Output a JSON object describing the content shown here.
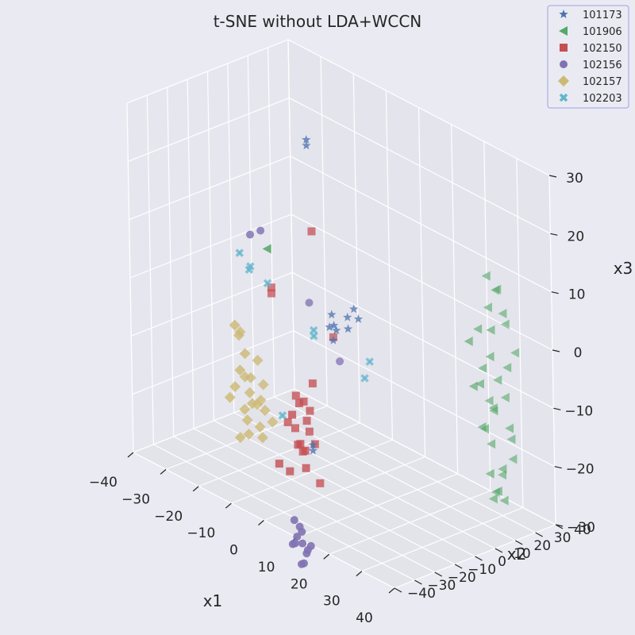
{
  "chart_data": {
    "type": "scatter",
    "title": "t-SNE without LDA+WCCN",
    "xlabel": "x1",
    "ylabel": "x2",
    "zlabel": "x3",
    "x_ticks": [
      "−40",
      "−30",
      "−20",
      "−10",
      "0",
      "10",
      "20",
      "30",
      "40"
    ],
    "y_ticks": [
      "−40",
      "−30",
      "−20",
      "−10",
      "0",
      "10",
      "20",
      "30",
      "40"
    ],
    "z_ticks": [
      "−30",
      "−20",
      "−10",
      "0",
      "10",
      "20",
      "30"
    ],
    "xlim": [
      -40,
      40
    ],
    "ylim": [
      -40,
      40
    ],
    "zlim": [
      -30,
      30
    ],
    "grid": true,
    "legend_position": "top-right",
    "series": [
      {
        "name": "101173",
        "marker": "star",
        "color": "#4c72b0",
        "points": [
          [
            -8,
            -3,
            28
          ],
          [
            -8,
            -3,
            27
          ],
          [
            2,
            3,
            1
          ],
          [
            -3,
            0,
            -1
          ],
          [
            -1,
            -1,
            -3
          ],
          [
            4,
            2,
            0
          ],
          [
            0,
            3,
            -1
          ],
          [
            -5,
            2,
            -4
          ],
          [
            -2,
            -1,
            -5
          ],
          [
            -3,
            1,
            -3
          ],
          [
            2,
            0,
            -2
          ],
          [
            -7,
            -4,
            -24
          ],
          [
            -7,
            -4,
            -25
          ]
        ]
      },
      {
        "name": "101906",
        "marker": "triangle-left",
        "color": "#55a868",
        "points": [
          [
            -10,
            -20,
            11
          ],
          [
            30,
            24,
            12
          ],
          [
            32,
            26,
            10
          ],
          [
            34,
            22,
            11
          ],
          [
            31,
            23,
            7
          ],
          [
            33,
            27,
            6
          ],
          [
            29,
            21,
            3
          ],
          [
            35,
            25,
            5
          ],
          [
            28,
            18,
            1
          ],
          [
            32,
            22,
            -1
          ],
          [
            36,
            28,
            0
          ],
          [
            30,
            20,
            -6
          ],
          [
            33,
            24,
            -5
          ],
          [
            34,
            20,
            -9
          ],
          [
            29,
            26,
            -10
          ],
          [
            37,
            23,
            -12
          ],
          [
            31,
            19,
            -13
          ],
          [
            35,
            27,
            -15
          ],
          [
            30,
            25,
            -17
          ],
          [
            34,
            24,
            -20
          ],
          [
            32,
            21,
            -21
          ],
          [
            36,
            26,
            -18
          ],
          [
            33,
            22,
            -24
          ],
          [
            31,
            24,
            -26
          ],
          [
            35,
            20,
            -23
          ],
          [
            29,
            23,
            -4
          ],
          [
            34,
            26,
            -8
          ],
          [
            32,
            27,
            -22
          ],
          [
            30,
            22,
            -14
          ],
          [
            36,
            24,
            -2
          ],
          [
            33,
            21,
            4
          ],
          [
            31,
            25,
            -11
          ],
          [
            35,
            23,
            -25
          ],
          [
            28,
            20,
            -7
          ]
        ]
      },
      {
        "name": "102150",
        "marker": "square",
        "color": "#c44e52",
        "points": [
          [
            -10,
            2,
            11
          ],
          [
            -24,
            4,
            -3
          ],
          [
            -24,
            4,
            -4
          ],
          [
            -7,
            7,
            -7
          ],
          [
            -8,
            -2,
            -14
          ],
          [
            -9,
            -5,
            -17
          ],
          [
            -11,
            -4,
            -18
          ],
          [
            -12,
            -6,
            -20
          ],
          [
            -10,
            -2,
            -21
          ],
          [
            -8,
            -4,
            -22
          ],
          [
            -13,
            -3,
            -23
          ],
          [
            -9,
            -7,
            -24
          ],
          [
            -11,
            -5,
            -25
          ],
          [
            -10,
            -3,
            -26
          ],
          [
            -12,
            -1,
            -27
          ],
          [
            -8,
            -6,
            -28
          ],
          [
            -14,
            -5,
            -22
          ],
          [
            -7,
            -3,
            -24
          ],
          [
            -15,
            -8,
            -29
          ],
          [
            -13,
            -6,
            -30
          ],
          [
            -5,
            -4,
            -30
          ],
          [
            -9,
            -2,
            -19
          ],
          [
            -12,
            -4,
            -17
          ]
        ]
      },
      {
        "name": "102156",
        "marker": "circle",
        "color": "#8172b2",
        "points": [
          [
            -19,
            -14,
            10
          ],
          [
            -17,
            -12,
            11
          ],
          [
            -8,
            -3,
            0
          ],
          [
            -2,
            2,
            -9
          ],
          [
            0,
            -25,
            -32
          ],
          [
            1,
            -24,
            -33
          ],
          [
            2,
            -27,
            -34
          ],
          [
            3,
            -26,
            -35
          ],
          [
            1,
            -23,
            -34
          ],
          [
            4,
            -25,
            -36
          ],
          [
            2,
            -28,
            -35
          ],
          [
            3,
            -24,
            -37
          ],
          [
            0,
            -26,
            -36
          ],
          [
            5,
            -25,
            -35
          ],
          [
            4,
            -27,
            -38
          ],
          [
            2,
            -25,
            -39
          ]
        ]
      },
      {
        "name": "102157",
        "marker": "diamond",
        "color": "#ccb974",
        "points": [
          [
            -28,
            -8,
            -9
          ],
          [
            -27,
            -7,
            -10
          ],
          [
            -28,
            -6,
            -11
          ],
          [
            -25,
            -8,
            -13
          ],
          [
            -23,
            -5,
            -14
          ],
          [
            -26,
            -9,
            -16
          ],
          [
            -24,
            -7,
            -17
          ],
          [
            -22,
            -4,
            -18
          ],
          [
            -27,
            -10,
            -19
          ],
          [
            -25,
            -6,
            -20
          ],
          [
            -23,
            -8,
            -21
          ],
          [
            -21,
            -5,
            -22
          ],
          [
            -26,
            -7,
            -23
          ],
          [
            -24,
            -9,
            -24
          ],
          [
            -22,
            -6,
            -25
          ],
          [
            -20,
            -8,
            -26
          ],
          [
            -25,
            -11,
            -27
          ],
          [
            -23,
            -10,
            -26
          ],
          [
            -27,
            -5,
            -18
          ],
          [
            -21,
            -7,
            -20
          ],
          [
            -24,
            -4,
            -22
          ],
          [
            -20,
            -3,
            -24
          ],
          [
            -28,
            -11,
            -21
          ]
        ]
      },
      {
        "name": "102203",
        "marker": "x",
        "color": "#64b5cd",
        "points": [
          [
            -28,
            -5,
            3
          ],
          [
            -26,
            -3,
            1
          ],
          [
            -27,
            -2,
            0
          ],
          [
            -22,
            -1,
            -1
          ],
          [
            -8,
            -1,
            -5
          ],
          [
            -8,
            -1,
            -6
          ],
          [
            6,
            4,
            -7
          ],
          [
            5,
            3,
            -10
          ],
          [
            -15,
            -6,
            -21
          ]
        ]
      }
    ]
  }
}
